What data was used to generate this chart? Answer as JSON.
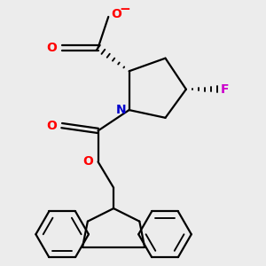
{
  "bg_color": "#ececec",
  "atom_colors": {
    "O": "#ff0000",
    "N": "#0000cc",
    "F": "#cc00cc",
    "C": "#000000",
    "minus": "#ff0000"
  },
  "line_color": "#000000",
  "line_width": 1.6
}
